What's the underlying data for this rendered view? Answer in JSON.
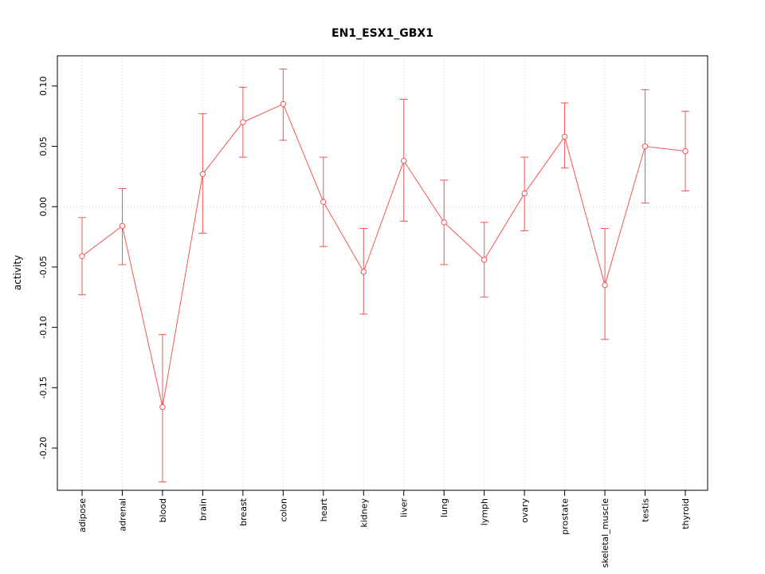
{
  "title": "EN1_ESX1_GBX1",
  "chart_data": {
    "type": "line",
    "title": "EN1_ESX1_GBX1",
    "xlabel": "",
    "ylabel": "activity",
    "categories": [
      "adipose",
      "adrenal",
      "blood",
      "brain",
      "breast",
      "colon",
      "heart",
      "kidney",
      "liver",
      "lung",
      "lymph",
      "ovary",
      "prostate",
      "skeletal_muscle",
      "testis",
      "thyroid"
    ],
    "series": [
      {
        "name": "activity",
        "values": [
          -0.041,
          -0.016,
          -0.166,
          0.027,
          0.07,
          0.085,
          0.004,
          -0.054,
          0.038,
          -0.013,
          -0.044,
          0.011,
          0.058,
          -0.065,
          0.05,
          0.046
        ],
        "lower": [
          -0.073,
          -0.048,
          -0.228,
          -0.022,
          0.041,
          0.055,
          -0.033,
          -0.089,
          -0.012,
          -0.048,
          -0.075,
          -0.02,
          0.032,
          -0.11,
          0.003,
          0.013
        ],
        "upper": [
          -0.009,
          0.015,
          -0.106,
          0.077,
          0.099,
          0.114,
          0.041,
          -0.018,
          0.089,
          0.022,
          -0.013,
          0.041,
          0.086,
          -0.018,
          0.097,
          0.079
        ]
      }
    ],
    "ylim": [
      -0.235,
      0.125
    ],
    "ytick_values": [
      0.1,
      0.05,
      0.0,
      -0.05,
      -0.1,
      -0.15,
      -0.2
    ],
    "ytick_labels": [
      "0.10",
      "0.05",
      "0.00",
      "-0.05",
      "-0.10",
      "-0.15",
      "-0.20"
    ],
    "grid": "dotted vertical at each category, dotted horizontal at zero",
    "legend": "none",
    "line_color": "#f15555",
    "grid_color": "#d4d4d4",
    "zero_line_color": "#d8c0c0"
  }
}
